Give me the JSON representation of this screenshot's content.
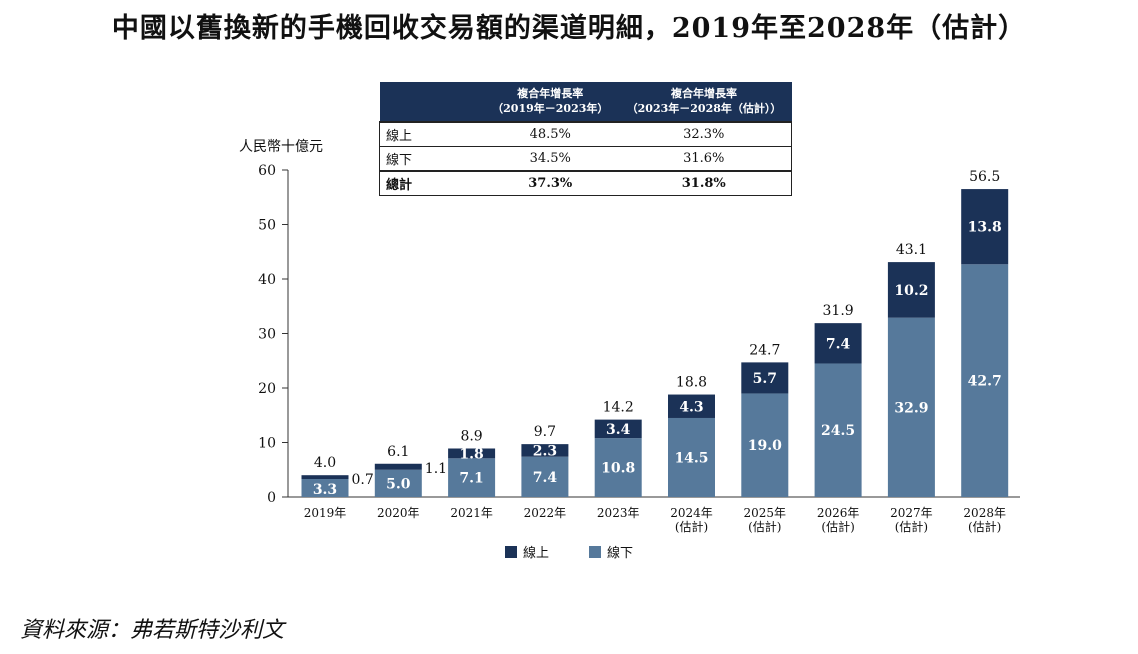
{
  "title": "中國以舊換新的手機回收交易額的渠道明細，2019年至2028年（估計）",
  "unit_label": "人民幣十億元",
  "source": "資料來源：弗若斯特沙利文",
  "colors": {
    "online": "#1b3257",
    "offline": "#56799b"
  },
  "cagr_table": {
    "header": {
      "col1": [
        "複合年增長率",
        "（2019年－2023年）"
      ],
      "col2": [
        "複合年增長率",
        "（2023年－2028年（估計））"
      ]
    },
    "rows": [
      {
        "label": "線上",
        "v1": "48.5%",
        "v2": "32.3%"
      },
      {
        "label": "線下",
        "v1": "34.5%",
        "v2": "31.6%"
      },
      {
        "label": "總計",
        "v1": "37.3%",
        "v2": "31.8%"
      }
    ]
  },
  "chart_data": {
    "type": "bar",
    "stacked": true,
    "categories": [
      [
        "2019年"
      ],
      [
        "2020年"
      ],
      [
        "2021年"
      ],
      [
        "2022年"
      ],
      [
        "2023年"
      ],
      [
        "2024年",
        "(估計)"
      ],
      [
        "2025年",
        "(估計)"
      ],
      [
        "2026年",
        "(估計)"
      ],
      [
        "2027年",
        "(估計)"
      ],
      [
        "2028年",
        "(估計)"
      ]
    ],
    "series": [
      {
        "name": "線下",
        "values": [
          3.3,
          5.0,
          7.1,
          7.4,
          10.8,
          14.5,
          19.0,
          24.5,
          32.9,
          42.7
        ]
      },
      {
        "name": "線上",
        "values": [
          0.7,
          1.1,
          1.8,
          2.3,
          3.4,
          4.3,
          5.7,
          7.4,
          10.2,
          13.8
        ]
      }
    ],
    "totals": [
      4.0,
      6.1,
      8.9,
      9.7,
      14.2,
      18.8,
      24.7,
      31.9,
      43.1,
      56.5
    ],
    "yticks": [
      0,
      10,
      20,
      30,
      40,
      50,
      60
    ],
    "ylim": [
      0,
      60
    ],
    "legend": [
      "線上",
      "線下"
    ]
  }
}
